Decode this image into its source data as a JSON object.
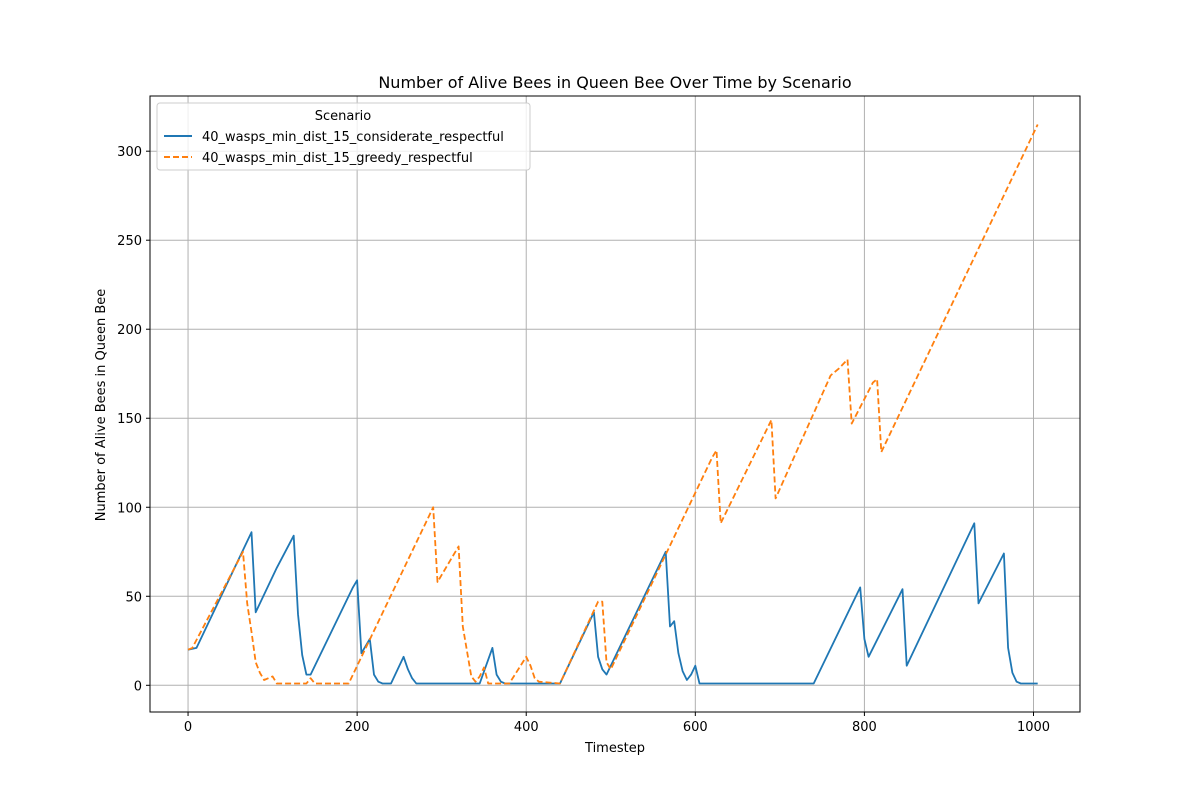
{
  "chart_data": {
    "type": "line",
    "title": "Number of Alive Bees in Queen Bee Over Time by Scenario",
    "xlabel": "Timestep",
    "ylabel": "Number of Alive Bees in Queen Bee",
    "xlim": [
      -45,
      1055
    ],
    "ylim": [
      -15,
      331
    ],
    "xticks": [
      0,
      200,
      400,
      600,
      800,
      1000
    ],
    "yticks": [
      0,
      50,
      100,
      150,
      200,
      250,
      300
    ],
    "grid": true,
    "legend": {
      "title": "Scenario",
      "location": "upper-left"
    },
    "series": [
      {
        "name": "40_wasps_min_dist_15_considerate_respectful",
        "color": "#1f77b4",
        "dash": "solid",
        "points": [
          [
            0,
            20
          ],
          [
            10,
            21
          ],
          [
            75,
            86
          ],
          [
            80,
            41
          ],
          [
            105,
            66
          ],
          [
            125,
            84
          ],
          [
            130,
            40
          ],
          [
            135,
            17
          ],
          [
            140,
            6
          ],
          [
            145,
            6
          ],
          [
            195,
            55
          ],
          [
            200,
            59
          ],
          [
            205,
            18
          ],
          [
            215,
            26
          ],
          [
            220,
            6
          ],
          [
            225,
            2
          ],
          [
            230,
            1
          ],
          [
            240,
            1
          ],
          [
            255,
            16
          ],
          [
            260,
            9
          ],
          [
            265,
            4
          ],
          [
            270,
            1
          ],
          [
            345,
            1
          ],
          [
            360,
            21
          ],
          [
            365,
            6
          ],
          [
            370,
            2
          ],
          [
            375,
            1
          ],
          [
            440,
            1
          ],
          [
            480,
            41
          ],
          [
            485,
            16
          ],
          [
            490,
            9
          ],
          [
            495,
            6
          ],
          [
            565,
            75
          ],
          [
            570,
            33
          ],
          [
            575,
            36
          ],
          [
            580,
            18
          ],
          [
            585,
            8
          ],
          [
            590,
            3
          ],
          [
            595,
            6
          ],
          [
            600,
            11
          ],
          [
            605,
            1
          ],
          [
            740,
            1
          ],
          [
            795,
            55
          ],
          [
            800,
            26
          ],
          [
            805,
            16
          ],
          [
            845,
            54
          ],
          [
            850,
            11
          ],
          [
            930,
            91
          ],
          [
            935,
            46
          ],
          [
            965,
            74
          ],
          [
            970,
            21
          ],
          [
            975,
            7
          ],
          [
            980,
            2
          ],
          [
            985,
            1
          ],
          [
            1005,
            1
          ]
        ]
      },
      {
        "name": "40_wasps_min_dist_15_greedy_respectful",
        "color": "#ff7f0e",
        "dash": "dashed",
        "points": [
          [
            0,
            20
          ],
          [
            5,
            21
          ],
          [
            65,
            75
          ],
          [
            70,
            46
          ],
          [
            75,
            30
          ],
          [
            80,
            13
          ],
          [
            85,
            7
          ],
          [
            90,
            3
          ],
          [
            95,
            4
          ],
          [
            100,
            5
          ],
          [
            105,
            1
          ],
          [
            140,
            1
          ],
          [
            145,
            4
          ],
          [
            150,
            1
          ],
          [
            190,
            1
          ],
          [
            290,
            100
          ],
          [
            295,
            58
          ],
          [
            310,
            70
          ],
          [
            320,
            78
          ],
          [
            325,
            33
          ],
          [
            335,
            5
          ],
          [
            340,
            2
          ],
          [
            345,
            5
          ],
          [
            350,
            10
          ],
          [
            355,
            1
          ],
          [
            380,
            1
          ],
          [
            400,
            16
          ],
          [
            405,
            11
          ],
          [
            410,
            4
          ],
          [
            415,
            2
          ],
          [
            440,
            1
          ],
          [
            485,
            47
          ],
          [
            490,
            47
          ],
          [
            495,
            13
          ],
          [
            500,
            9
          ],
          [
            620,
            128
          ],
          [
            625,
            132
          ],
          [
            630,
            91
          ],
          [
            690,
            149
          ],
          [
            695,
            105
          ],
          [
            760,
            174
          ],
          [
            770,
            178
          ],
          [
            780,
            183
          ],
          [
            785,
            147
          ],
          [
            810,
            170
          ],
          [
            815,
            172
          ],
          [
            820,
            131
          ],
          [
            1005,
            315
          ]
        ]
      }
    ]
  }
}
